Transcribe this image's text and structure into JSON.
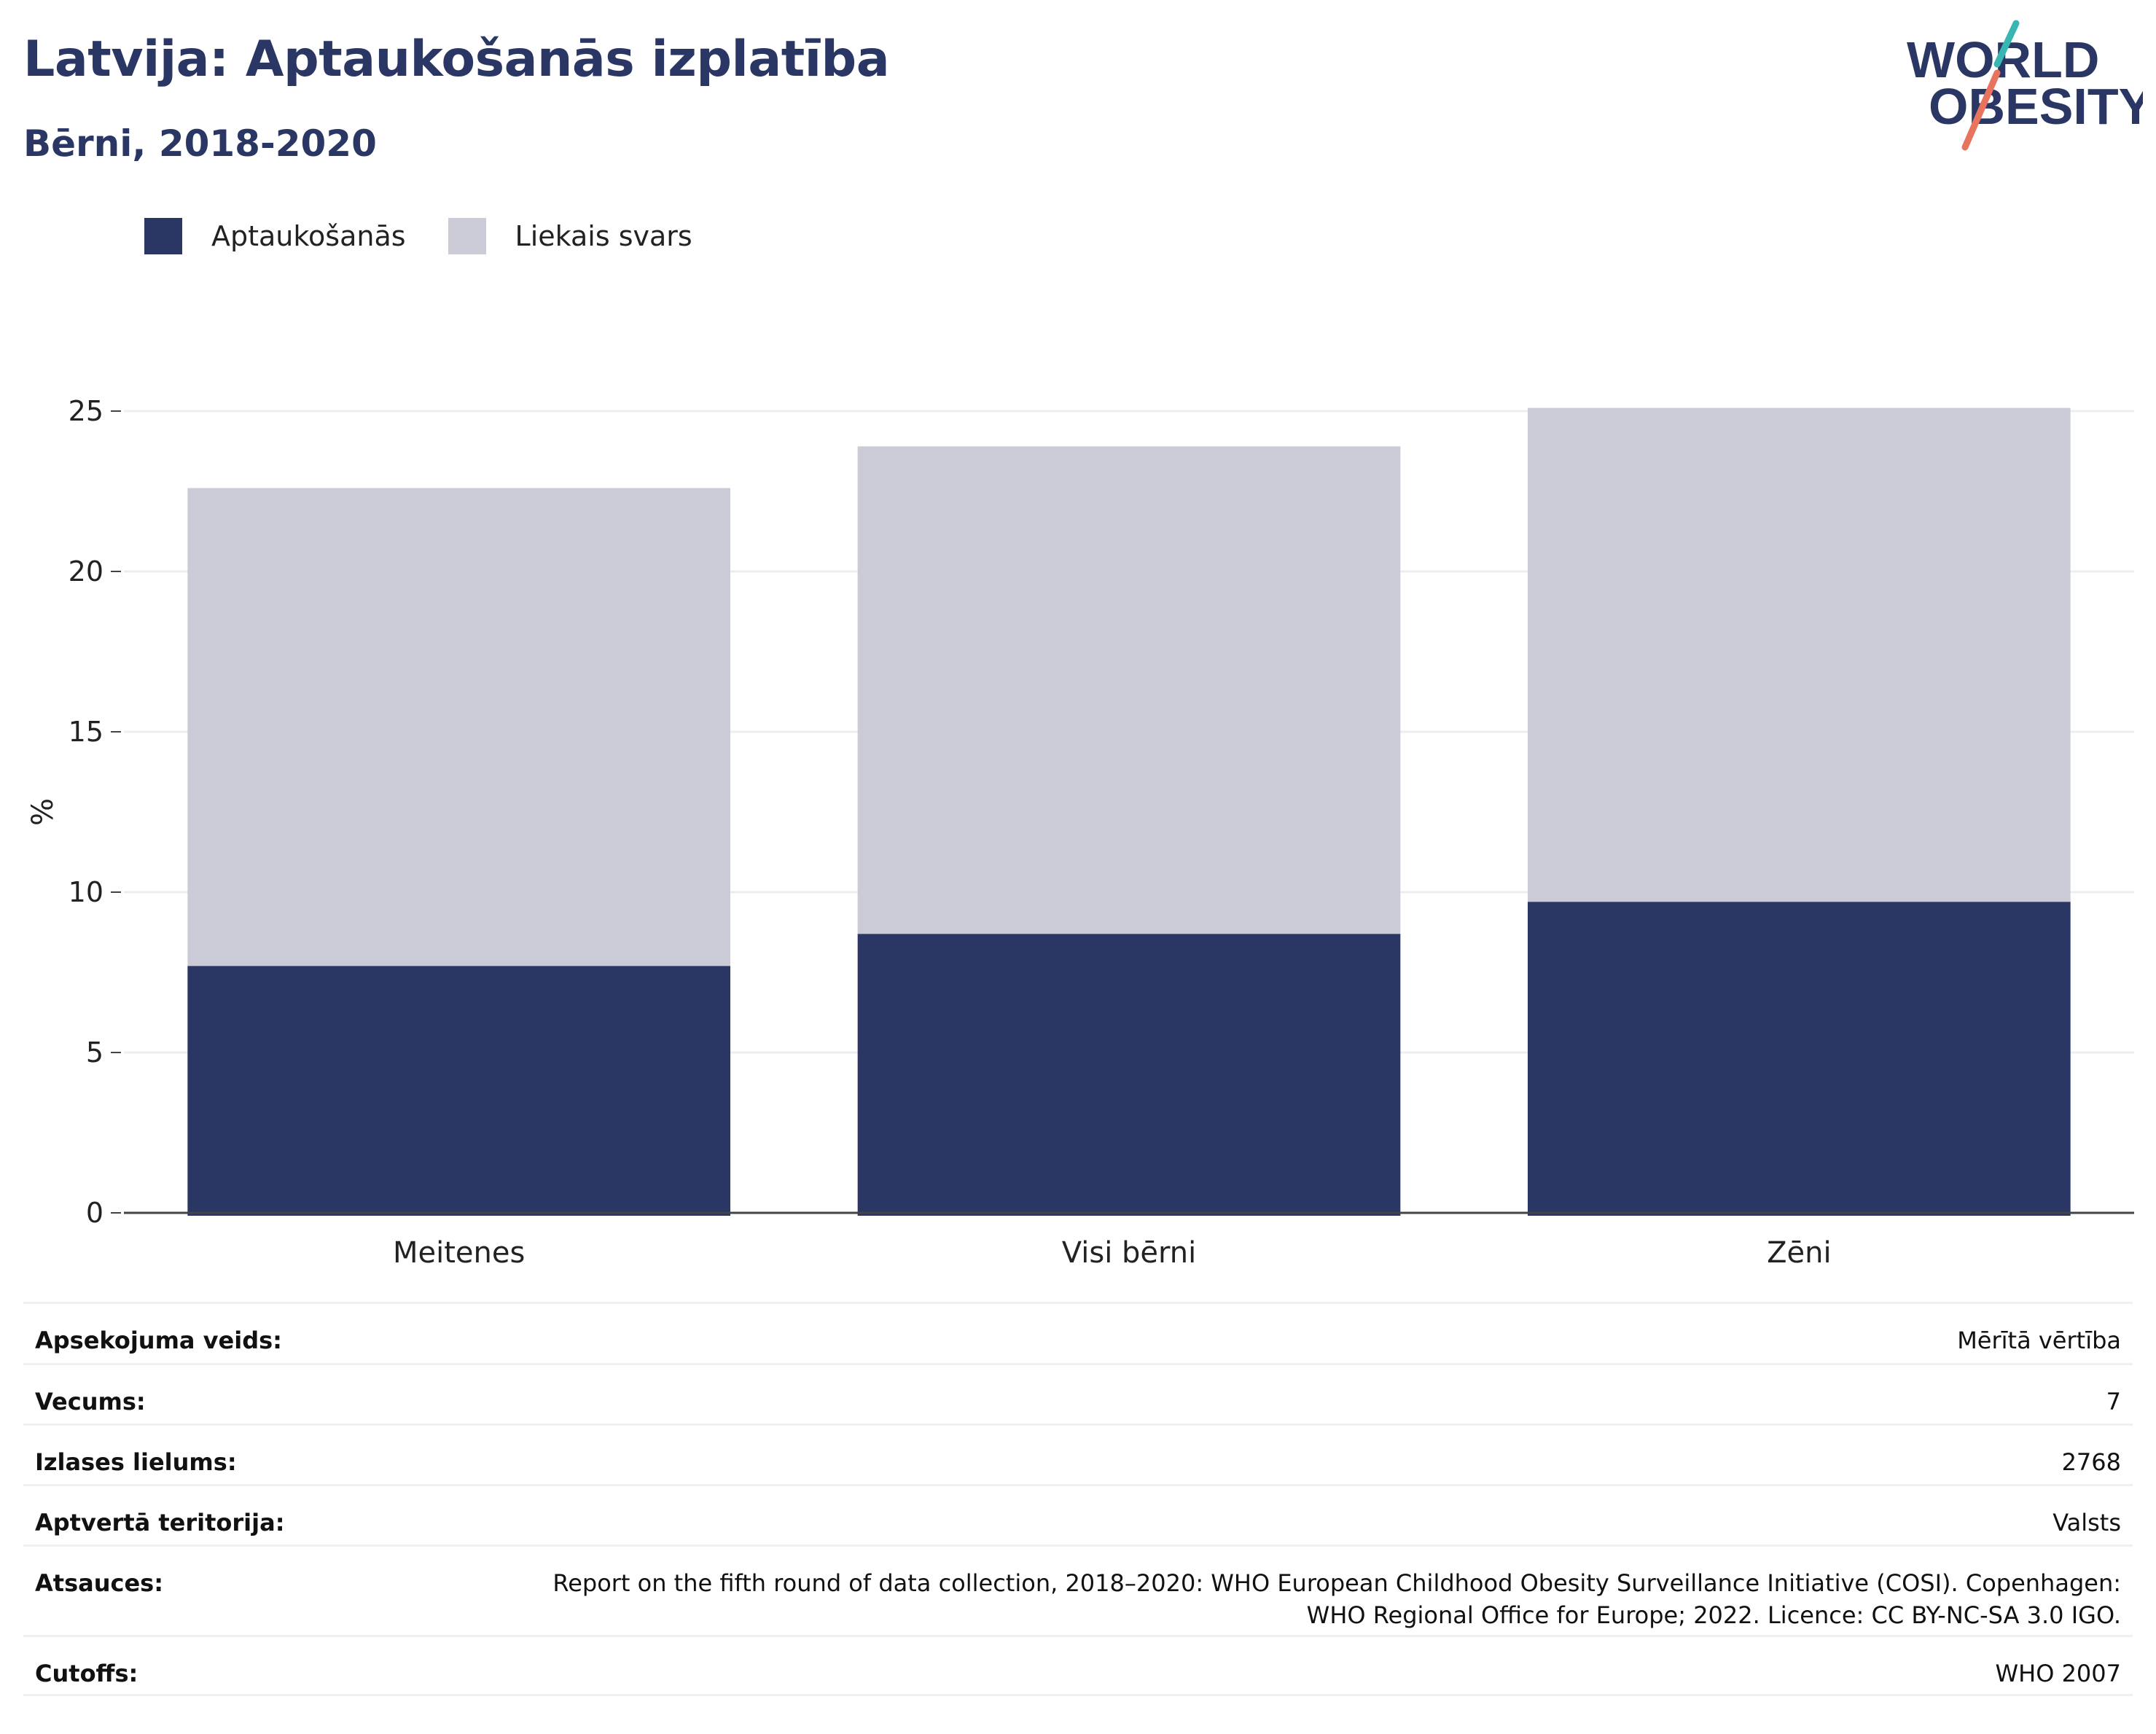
{
  "header": {
    "title": "Latvija: Aptaukošanās izplatība",
    "subtitle": "Bērni, 2018-2020"
  },
  "logo": {
    "line1": "WORLD",
    "line2": "OBESITY"
  },
  "colors": {
    "obesity": "#2a3664",
    "overweight": "#cacbd7",
    "text": "#2a3664",
    "logo_teal": "#37b6b2",
    "logo_coral": "#e8735f"
  },
  "chart_data": {
    "type": "bar",
    "stacked": true,
    "categories": [
      "Meitenes",
      "Visi bērni",
      "Zēni"
    ],
    "series": [
      {
        "name": "Aptaukošanās",
        "values": [
          7.7,
          8.7,
          9.7
        ]
      },
      {
        "name": "Liekais svars",
        "values": [
          14.9,
          15.2,
          15.4
        ]
      }
    ],
    "totals": [
      22.6,
      23.9,
      25.1
    ],
    "title": "",
    "xlabel": "",
    "ylabel": "%",
    "ylim": [
      0,
      25.5
    ],
    "yticks": [
      0,
      5,
      10,
      15,
      20,
      25
    ],
    "grid": true,
    "legend_position": "top-left"
  },
  "info": [
    {
      "key": "Apsekojuma veids:",
      "value": "Mērītā vērtība"
    },
    {
      "key": "Vecums:",
      "value": "7"
    },
    {
      "key": "Izlases lielums:",
      "value": "2768"
    },
    {
      "key": "Aptvertā teritorija:",
      "value": "Valsts"
    },
    {
      "key": "Atsauces:",
      "value": "Report on the fifth round of data collection, 2018–2020: WHO European Childhood Obesity Surveillance Initiative (COSI). Copenhagen:",
      "value2": "WHO Regional Office for Europe; 2022. Licence: CC BY-NC-SA 3.0 IGO."
    },
    {
      "key": "Cutoffs:",
      "value": "WHO 2007"
    }
  ]
}
